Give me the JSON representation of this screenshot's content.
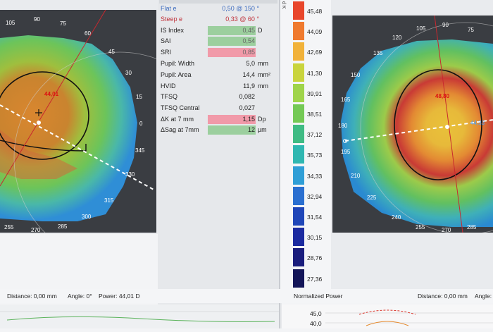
{
  "left_map": {
    "angles": [
      "105",
      "90",
      "75",
      "60",
      "45",
      "30",
      "15",
      "0",
      "345",
      "330",
      "315",
      "300",
      "285",
      "270",
      "255"
    ],
    "center_value": "44,01"
  },
  "center_table": {
    "rows": [
      {
        "label": "Flat e",
        "value": "0,50 @ 150 °",
        "unit": "",
        "value_color": "#3f6dbf",
        "box_color": ""
      },
      {
        "label": "Steep e",
        "value": "0,33 @ 60 °",
        "unit": "",
        "value_color": "#c0323a",
        "box_color": ""
      },
      {
        "label": "IS Index",
        "value": "0,45",
        "unit": "D",
        "value_color": "#666",
        "box_color": "#9ccf9e"
      },
      {
        "label": "SAI",
        "value": "0,54",
        "unit": "",
        "value_color": "#666",
        "box_color": "#9ccf9e"
      },
      {
        "label": "SRI",
        "value": "0,85",
        "unit": "",
        "value_color": "#666",
        "box_color": "#f19aa9"
      },
      {
        "label": "Pupil: Width",
        "value": "5,0",
        "unit": "mm",
        "value_color": "#333",
        "box_color": ""
      },
      {
        "label": "Pupil: Area",
        "value": "14,4",
        "unit": "mm²",
        "value_color": "#333",
        "box_color": ""
      },
      {
        "label": "HVID",
        "value": "11,9",
        "unit": "mm",
        "value_color": "#333",
        "box_color": ""
      },
      {
        "label": "TFSQ",
        "value": "0,082",
        "unit": "",
        "value_color": "#333",
        "box_color": ""
      },
      {
        "label": "TFSQ Central",
        "value": "0,027",
        "unit": "",
        "value_color": "#333",
        "box_color": ""
      },
      {
        "label": "ΔK at 7 mm",
        "value": "1,15",
        "unit": "Dp",
        "value_color": "#444",
        "box_color": "#f19aa9"
      },
      {
        "label": "ΔSag at 7mm",
        "value": "12",
        "unit": "µm",
        "value_color": "#444",
        "box_color": "#9ccf9e"
      }
    ]
  },
  "scale": {
    "title": "Normalized Power",
    "side_label": "d K",
    "values": [
      "45,48",
      "44,09",
      "42,69",
      "41,30",
      "39,91",
      "38,51",
      "37,12",
      "35,73",
      "34,33",
      "32,94",
      "31,54",
      "30,15",
      "28,76",
      "27,36"
    ],
    "colors": [
      "#e8462b",
      "#ef7a2e",
      "#f1b23a",
      "#c9d43d",
      "#9fd44a",
      "#74c955",
      "#3fbb84",
      "#2fb7b1",
      "#2f9ed6",
      "#2a6fd0",
      "#1f46b8",
      "#1b2aa0",
      "#1a1d7d",
      "#131558"
    ]
  },
  "right_map": {
    "angles": [
      "135",
      "120",
      "105",
      "90",
      "75",
      "150",
      "165",
      "180",
      "195",
      "210",
      "225",
      "240",
      "255",
      "270",
      "285"
    ],
    "center_value": "48,80",
    "right_value": "44,33"
  },
  "left_status": {
    "distance": "Distance: 0,00 mm",
    "angle": "Angle: 0°",
    "power": "Power: 44,01 D"
  },
  "right_status": {
    "distance": "Distance: 0,00 mm",
    "angle": "Angle:"
  },
  "graph": {
    "y_labels": [
      "45,0",
      "40,0"
    ]
  }
}
